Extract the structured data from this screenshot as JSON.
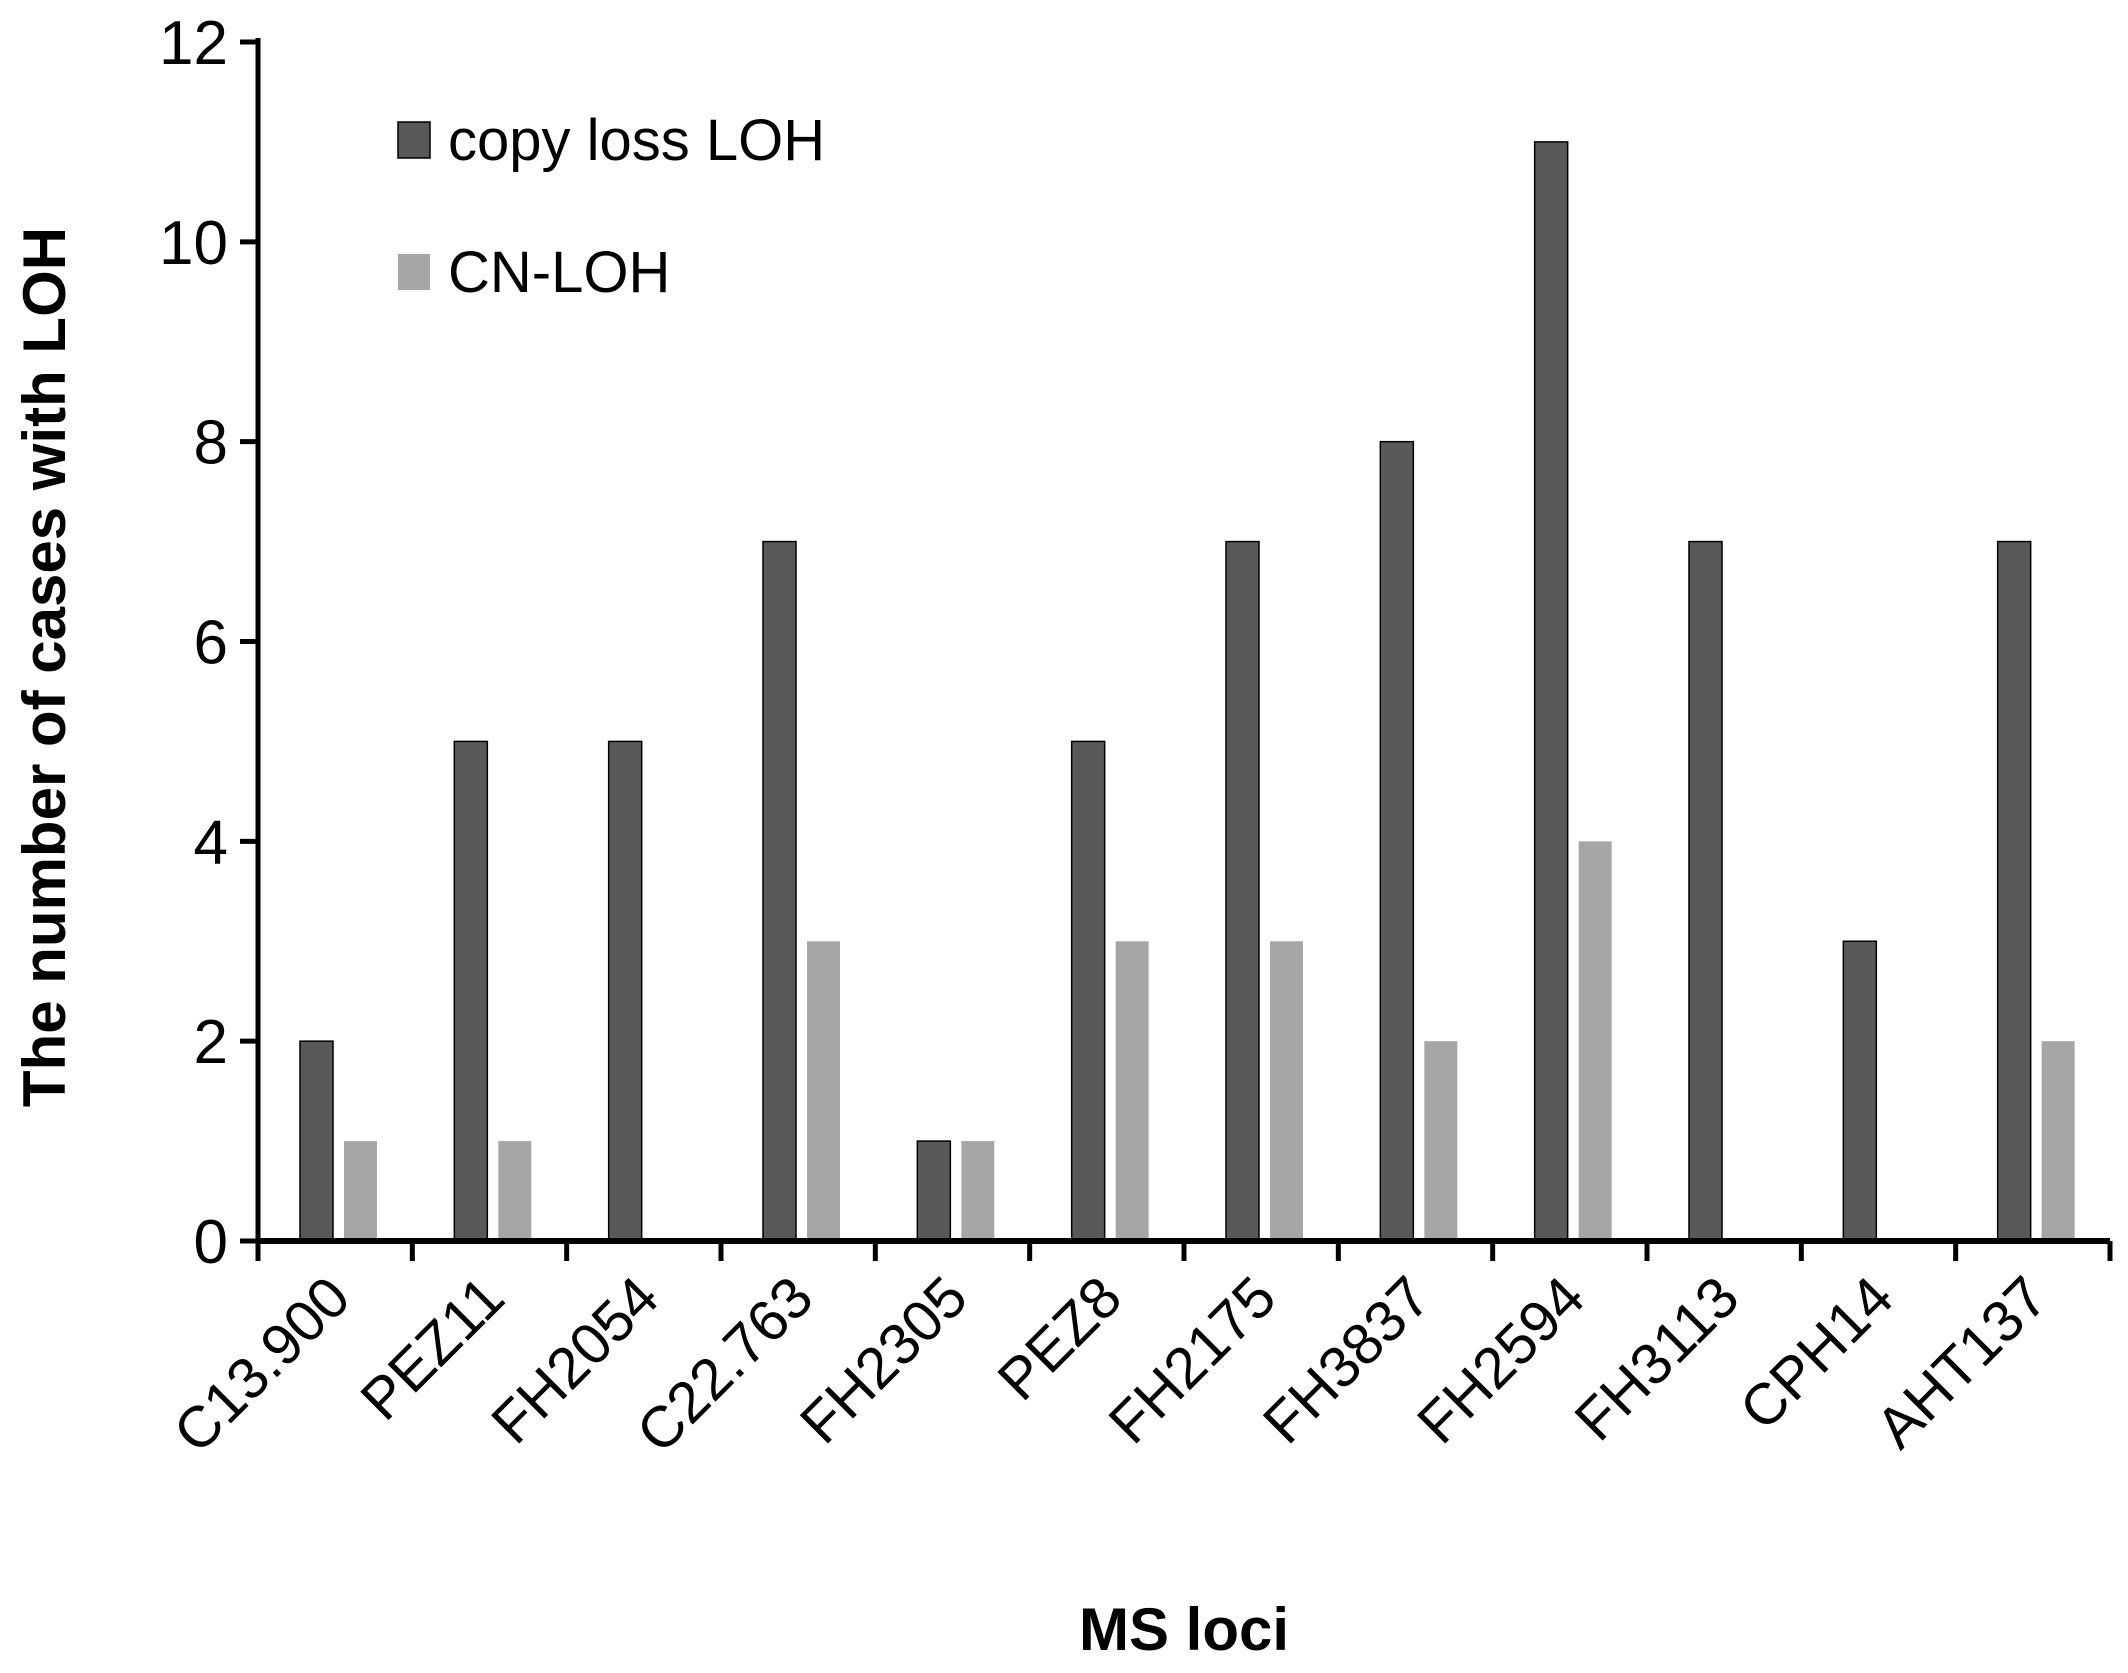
{
  "chart_data": {
    "type": "bar",
    "title": "",
    "xlabel": "MS loci",
    "ylabel": "The number of cases with LOH",
    "ylim": [
      0,
      12
    ],
    "yticks": [
      "0",
      "2",
      "4",
      "6",
      "8",
      "10",
      "12"
    ],
    "grid": false,
    "legend_position": "top-left",
    "categories": [
      "C13.900",
      "PEZ11",
      "FH2054",
      "C22.763",
      "FH2305",
      "PEZ8",
      "FH2175",
      "FH3837",
      "FH2594",
      "FH3113",
      "CPH14",
      "AHT137"
    ],
    "series": [
      {
        "name": "copy loss LOH",
        "color": "#595959",
        "values": [
          2,
          5,
          5,
          7,
          1,
          5,
          7,
          8,
          11,
          7,
          3,
          7
        ]
      },
      {
        "name": "CN-LOH",
        "color": "#a6a6a6",
        "values": [
          1,
          1,
          0,
          3,
          1,
          3,
          3,
          2,
          4,
          0,
          0,
          2
        ]
      }
    ]
  }
}
